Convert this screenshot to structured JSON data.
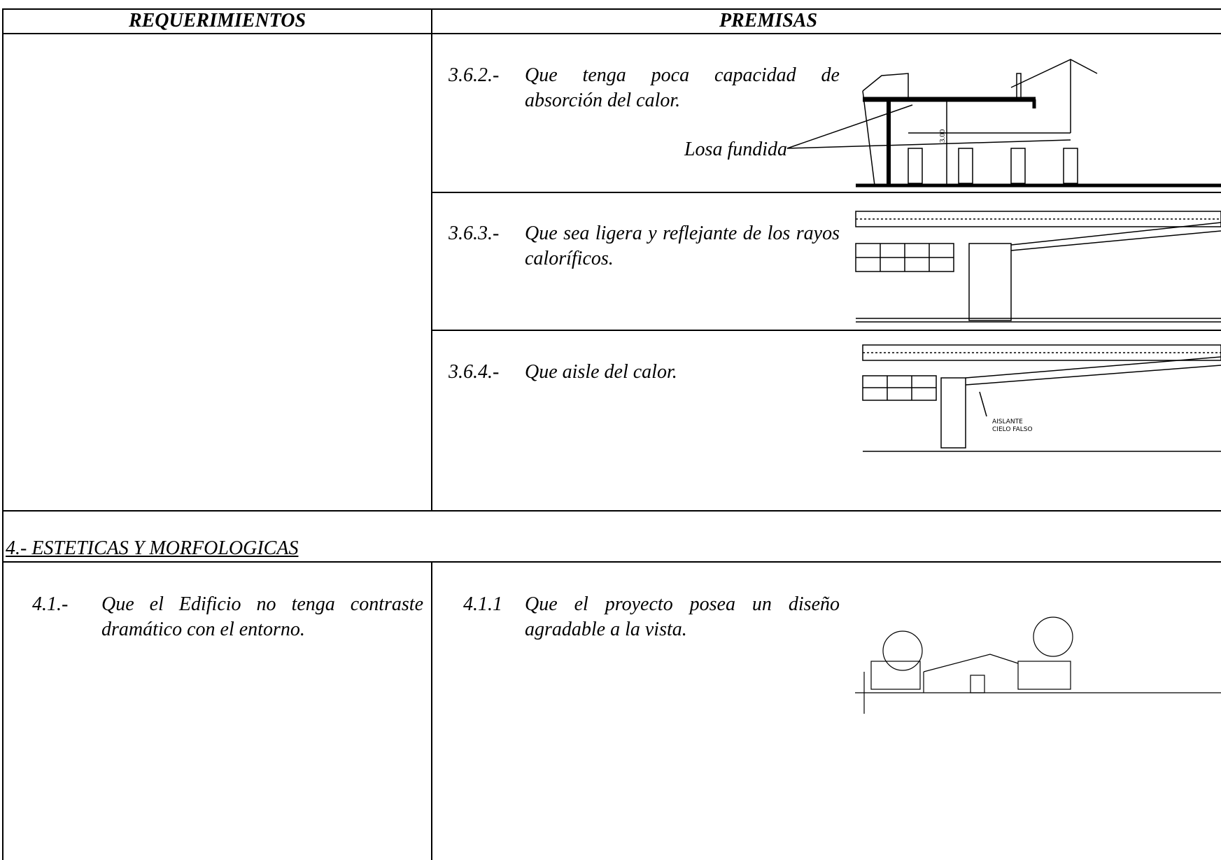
{
  "table": {
    "headers": [
      "REQUERIMIENTOS",
      "PREMISAS"
    ],
    "premisas": [
      {
        "number": "3.6.2.-",
        "text": "Que tenga poca capacidad de absorción del calor.",
        "drawing_labels": [
          "Losa fundida",
          "3.00"
        ]
      },
      {
        "number": "3.6.3.-",
        "text": "Que sea ligera y reflejante de los rayos caloríficos."
      },
      {
        "number": "3.6.4.-",
        "text": "Que aisle del calor.",
        "drawing_labels": [
          "AISLANTE",
          "CIELO FALSO"
        ]
      }
    ],
    "section": "4.- ESTETICAS Y MORFOLOGICAS",
    "requerimiento": {
      "number": "4.1.-",
      "text": "Que el Edificio no tenga contraste dramático con el entorno."
    },
    "premisa": {
      "number": "4.1.1",
      "text": "Que el proyecto posea un diseño agradable a la vista."
    }
  }
}
